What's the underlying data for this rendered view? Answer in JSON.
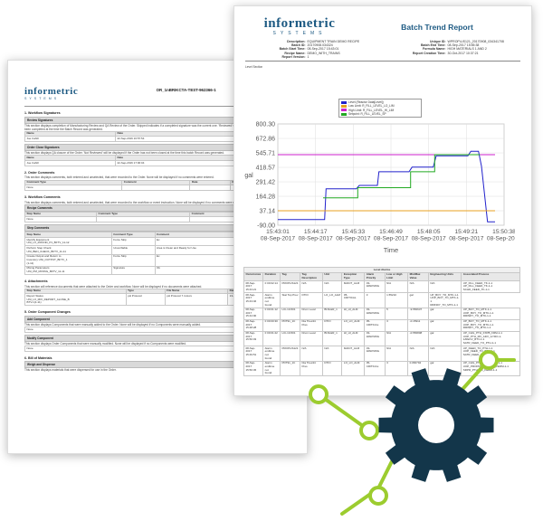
{
  "back_doc": {
    "brand": "informetric",
    "brand_sub": "SYSTEMS",
    "doc_id": "OR_1nBRIKCTA-TEST-962366-1",
    "sections": [
      {
        "title": "1. Workflow Signatures",
        "intro": "",
        "bars": [
          {
            "title": "Review Signatures",
            "text": "This section displays completion of Manufacturing Review and QA Review of the Order. Skipped indicates if a completed signature was the current one. 'Reviewed' will be displayed for signatures that have not been completed at the time the Batch Record was generated.",
            "headers": [
              "Name",
              "Date"
            ],
            "rows": [
              [
                "Joe Cahill",
                "22-Sep-2016 16:57:54"
              ]
            ]
          },
          {
            "title": "Order Close Signatures",
            "text": "This section displays QA closure of the Order. 'Not Reviewed' will be displayed if the Order has not been closed at the time this batch Record was generated.",
            "headers": [
              "Name",
              "Date"
            ],
            "rows": [
              [
                "Joe Cahill",
                "22-Sep-2016 17:00:04"
              ]
            ]
          }
        ]
      },
      {
        "title": "2. Order Comments",
        "intro": "This section displays comments, both entered and unselected, that were recorded to the Order. None will be displayed if no comments were entered.",
        "bars": [
          {
            "title": "",
            "text": "",
            "headers": [
              "Comment Type",
              "Comment",
              "Date",
              "Operator"
            ],
            "rows": [
              [
                "None",
                "",
                "",
                ""
              ]
            ]
          }
        ]
      },
      {
        "title": "3. Workflow Comments",
        "intro": "This section displays comments, both entered and unselected, that were recorded to the workflow or event instruction. None will be displayed if no comments were entered.",
        "bars": [
          {
            "title": "Recipe Comments",
            "text": "",
            "headers": [
              "Step Name",
              "Comment Type",
              "Comment",
              "Date"
            ],
            "rows": [
              [
                "None",
                "",
                "",
                ""
              ]
            ]
          },
          {
            "title": "Step Comments",
            "text": "",
            "headers": [
              "Step Name",
              "Comment Type",
              "Comment",
              "Date"
            ],
            "rows": [
              [
                "Identify Equipment\nUNI_LX_ROUND_P1_BFTV_11-12",
                "Force Skip",
                "Ex",
                "13-Jun-2016 16:35:07"
              ],
              [
                "Perform Step Check\nUNI_BEN_CHECK_BFTV_11-11",
                "Unverifiable",
                "Area is Clean and Ready for Use",
                "22-Sep-2016 16:27:19"
              ],
              [
                "Create Output and Return to\nInventory UNI_OUTPUT_BFTV_1\n(1-11)",
                "Force Skip",
                "Ex",
                "13-Jun-2016 16:39:58"
              ],
              [
                "Mixing Parameters\nUNI_PM_MIXING_BFTV_11-11",
                "Signature",
                "Ok",
                "22-Sep-2016 16:41:15"
              ]
            ]
          }
        ]
      },
      {
        "title": "4. Attachments",
        "intro": "This section will reference documents that were attached to the Order and workflow. None will be displayed if no documents were attached.",
        "bars": [
          {
            "title": "",
            "text": "",
            "headers": [
              "Step Name",
              "Type",
              "File Name",
              "Date"
            ],
            "rows": [
              [
                "Report Status\nUNI_LX_MIX_REPORT_ALONE_B\nBTV-1(1-11)",
                "pH Protocol",
                "pH Protocol 7.4.docx",
                "13-Jun-2016 16:33:19"
              ]
            ]
          }
        ]
      },
      {
        "title": "5. Order Component Changes",
        "intro": "",
        "bars": [
          {
            "title": "Add Component",
            "text": "This section displays Components that were manually added to the Order. None will be displayed if no Components were manually added.",
            "headers": [],
            "rows": [
              [
                "None"
              ]
            ]
          },
          {
            "title": "Modify Component",
            "text": "This section displays Order Components that were manually modified. None will be displayed if no Components were modified.",
            "headers": [],
            "rows": [
              [
                "None"
              ]
            ]
          }
        ]
      },
      {
        "title": "6. Bill of Materials",
        "intro": "",
        "bars": [
          {
            "title": "Weigh and Dispense",
            "text": "This section displays materials that were dispensed for use in the Order.",
            "headers": [],
            "rows": []
          }
        ]
      }
    ]
  },
  "front_doc": {
    "brand": "informetric",
    "brand_sub": "SYSTEMS",
    "title": "Batch Trend Report",
    "meta_left": [
      [
        "Description:",
        "EQUIPMENT TRAIN DEMO RECIPE"
      ],
      [
        "Batch ID:",
        "20170908.034324"
      ],
      [
        "Batch Start Time:",
        "08-Sep-2017 15:43:01"
      ],
      [
        "Recipe Name:",
        "DEMO_WITH_TRAINS"
      ],
      [
        "Report Version:",
        "1"
      ]
    ],
    "meta_right": [
      [
        "Unique ID:",
        "WPROP\\LIS121_20170908_034341708"
      ],
      [
        "Batch End Time:",
        "08-Sep-2017 15:55:38"
      ],
      [
        "Formula Name:",
        "HIGH MATERIALS 1 AND 2"
      ],
      [
        "Report Creation Time:",
        "30-Oct-2017 10:37:21"
      ]
    ],
    "chart_caption": "Level Section",
    "alarms_title": "Level Alarms",
    "alarm_headers": [
      "Occurrence",
      "Duration",
      "Tag",
      "Tag Description",
      "Unit",
      "Exception Type",
      "Alarm Priority",
      "Low or High Limit",
      "Min/Max Value",
      "Engineering Units",
      "Associated Process"
    ],
    "alarm_rows": [
      [
        "08-Sep-2017\n15:43:21",
        "0 00:02:14",
        "PROPLIS121",
        "N/A",
        "N/A",
        "MAINT_ALM",
        "03-\nWARNING",
        "N/A",
        "N/A",
        "N/A",
        "UP_FILL_FEED_TK-1-1\nUP_FILL_FEED_TK-1-1\nSCHD_FEED_TK-1-1"
      ],
      [
        "08-Sep-2017\n15:43:46",
        "Alarm\nendtime not\nfound.",
        "Stat Top Prev",
        "DTIO",
        "LO_LO_ALM",
        "05-\nCRITICAL",
        "3",
        "1.55210",
        "gal",
        "UP_BOY_TO_MTK-1-1\nUOP_BOY_TO_MTK-1-1\nRRINDY_TO_MTK-1-1"
      ],
      [
        "08-Sep-2017\n15:44:00",
        "0 00:01:12",
        "LIC-10-501",
        "Drum Level",
        "BOILER_1",
        "HI_HI_ALM",
        "03-\nWARNING",
        "5",
        "-9.556637",
        "gal",
        "UP_BOY_TO_MTK-1-1\nUOP_BOY_TO_MTK-1-1\nRRINDY_TO_MTK-1-1"
      ],
      [
        "08-Sep-2017\n15:48:28",
        "0 00:00:30",
        "PDT91_1C",
        "Dia Tires34 Pres",
        "DTIO",
        "LO_LO_ALM",
        "05-\nCRITICAL",
        "3",
        "-0.15911",
        "gal",
        "UP_BOY_TO_MTK-1-1\nUOP_BOY_TO_MTK-1-1\nRRINDY_TO_MTK-1-1"
      ],
      [
        "08-Sep-2017\n15:50:03",
        "0 00:01:22",
        "LIC-10-501",
        "Drum Level",
        "BOILER_1",
        "HI_HI_ALM",
        "03-\nWARNING",
        "N/A",
        "-0.556808",
        "gal",
        "UP_CHG_PTH_FXPB_FRM-1-1\nUOP_PTH_MV_ADV_GYRO-1-1/RECV_BTV-1-1\nSATR_FEED_TO_PTH-1-1"
      ],
      [
        "08-Sep-2017\n15:49:51",
        "Alarm\nendtime not\nfound.",
        "PROPLIS121",
        "N/A",
        "N/A",
        "MAINT_ALM",
        "03-\nWARNING",
        "N/A",
        "N/A",
        "N/A",
        "UP_FEED_TO_PTH-1-1\nUOP_FEED_TO_PTH-1-1\nSATR_FEED_TO_PTH-1-1"
      ],
      [
        "08-Sep-2017\n15:50:45",
        "Alarm\nendtime not\nfound.",
        "PDT91_1C",
        "Dia Tires34 Pres",
        "DTIO",
        "LO_LO_ALM",
        "05-\nCRITICAL",
        "3",
        "0.066794",
        "gal",
        "UP_CHG_PTH_FXPB_FRM-1-1\nUOP_PROPMT_PTH_TO_PERM-1-1\nSRPR_PTH_TO_PERM-1-1"
      ]
    ]
  },
  "chart_data": {
    "type": "line",
    "title": "",
    "xlabel": "Time",
    "ylabel": "gal",
    "ylim": [
      -90,
      800.3
    ],
    "yticks": [
      -90.0,
      37.14,
      164.28,
      291.42,
      418.57,
      545.71,
      672.86,
      800.3
    ],
    "ytick_labels": [
      "-90.00",
      "37.14",
      "164.28",
      "291.42",
      "418.57",
      "545.71",
      "672.86",
      "800.30"
    ],
    "xticks": [
      "15:43:01\n08-Sep-2017",
      "15:44:17\n08-Sep-2017",
      "15:45:33\n08-Sep-2017",
      "15:46:49\n08-Sep-2017",
      "15:48:05\n08-Sep-2017",
      "15:49:21\n08-Sep-2017",
      "15:50:38\n08-Sep-2017"
    ],
    "xrange_min": [
      0,
      15
    ],
    "grid": true,
    "legend_position": "top",
    "series": [
      {
        "name": "Level (Reactor Data[Level])",
        "color": "#2222cc",
        "points": [
          [
            0,
            -40
          ],
          [
            3.1,
            -40
          ],
          [
            3.2,
            230
          ],
          [
            5.2,
            230
          ],
          [
            5.4,
            260
          ],
          [
            6.6,
            260
          ],
          [
            6.7,
            380
          ],
          [
            8.7,
            380
          ],
          [
            8.9,
            420
          ],
          [
            10.3,
            420
          ],
          [
            10.5,
            520
          ],
          [
            12.6,
            520
          ],
          [
            12.8,
            560
          ],
          [
            13.3,
            560
          ],
          [
            13.5,
            430
          ],
          [
            13.9,
            -60
          ],
          [
            14.4,
            -60
          ]
        ]
      },
      {
        "name": "Low Limit: R_FILL_LEVEL_LO_LIM",
        "color": "#e8a020",
        "points": [
          [
            0,
            37
          ],
          [
            14.4,
            37
          ]
        ]
      },
      {
        "name": "High Limit: R_FILL_LEVEL_HI_LIM",
        "color": "#cc22cc",
        "points": [
          [
            0,
            530
          ],
          [
            14.4,
            530
          ]
        ]
      },
      {
        "name": "Setpoint: R_FILL_LEVEL_SP",
        "color": "#22aa22",
        "points": [
          [
            3.0,
            150
          ],
          [
            5.3,
            150
          ],
          [
            5.3,
            240
          ],
          [
            8.8,
            240
          ],
          [
            8.8,
            380
          ],
          [
            10.4,
            380
          ],
          [
            10.4,
            530
          ],
          [
            13.4,
            530
          ]
        ]
      }
    ]
  },
  "deco": {
    "gear_color": "#13364a",
    "line_color": "#9ccc2f"
  }
}
